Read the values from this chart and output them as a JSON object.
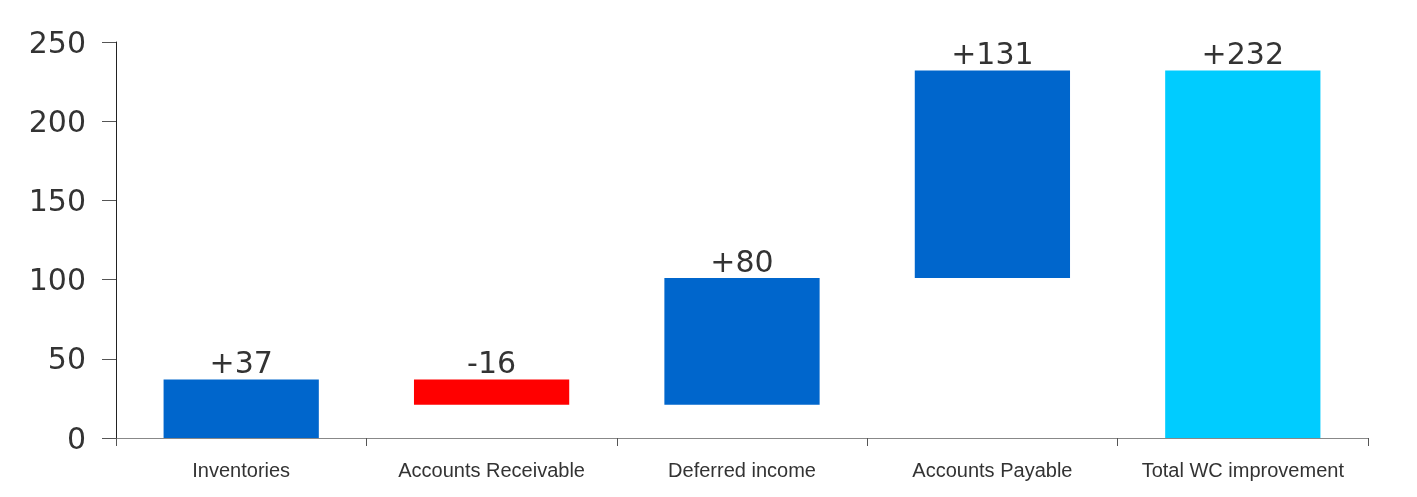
{
  "chart_data": {
    "type": "bar",
    "categories": [
      "Inventories",
      "Accounts Receivable",
      "Deferred income",
      "Accounts Payable",
      "Total WC improvement"
    ],
    "values": [
      37,
      -16,
      80,
      131,
      232
    ],
    "base": [
      0,
      37,
      21,
      101,
      0
    ],
    "colors": [
      "#0066cc",
      "#ff0000",
      "#0066cc",
      "#0066cc",
      "#00ccff"
    ],
    "value_labels": [
      "+37",
      "-16",
      "+80",
      "+131",
      "+232"
    ],
    "ylim": [
      0,
      250
    ],
    "yticks": [
      0,
      50,
      100,
      150,
      200,
      250
    ],
    "grid": false
  }
}
